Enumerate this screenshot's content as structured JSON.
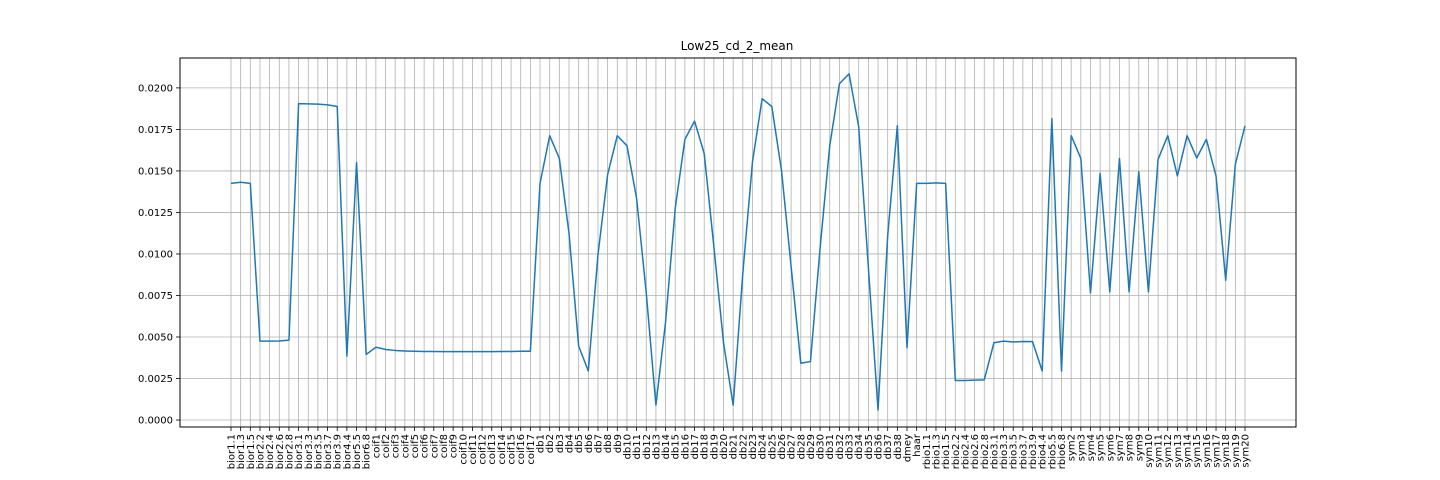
{
  "chart_data": {
    "type": "line",
    "title": "Low25_cd_2_mean",
    "xlabel": "",
    "ylabel": "",
    "ylim": [
      -0.00042,
      0.0218
    ],
    "yticks": [
      "0.0000",
      "0.0025",
      "0.0050",
      "0.0075",
      "0.0100",
      "0.0125",
      "0.0150",
      "0.0175",
      "0.0200"
    ],
    "grid": true,
    "line_color": "#1f77b4",
    "categories": [
      "bior1.1",
      "bior1.3",
      "bior1.5",
      "bior2.2",
      "bior2.4",
      "bior2.6",
      "bior2.8",
      "bior3.1",
      "bior3.3",
      "bior3.5",
      "bior3.7",
      "bior3.9",
      "bior4.4",
      "bior5.5",
      "bior6.8",
      "coif1",
      "coif2",
      "coif3",
      "coif4",
      "coif5",
      "coif6",
      "coif7",
      "coif8",
      "coif9",
      "coif10",
      "coif11",
      "coif12",
      "coif13",
      "coif14",
      "coif15",
      "coif16",
      "coif17",
      "db1",
      "db2",
      "db3",
      "db4",
      "db5",
      "db6",
      "db7",
      "db8",
      "db9",
      "db10",
      "db11",
      "db12",
      "db13",
      "db14",
      "db15",
      "db16",
      "db17",
      "db18",
      "db19",
      "db20",
      "db21",
      "db22",
      "db23",
      "db24",
      "db25",
      "db26",
      "db27",
      "db28",
      "db29",
      "db30",
      "db31",
      "db32",
      "db33",
      "db34",
      "db35",
      "db36",
      "db37",
      "db38",
      "dmey",
      "haar",
      "rbio1.1",
      "rbio1.3",
      "rbio1.5",
      "rbio2.2",
      "rbio2.4",
      "rbio2.6",
      "rbio2.8",
      "rbio3.1",
      "rbio3.3",
      "rbio3.5",
      "rbio3.7",
      "rbio3.9",
      "rbio4.4",
      "rbio5.5",
      "rbio6.8",
      "sym2",
      "sym3",
      "sym4",
      "sym5",
      "sym6",
      "sym7",
      "sym8",
      "sym9",
      "sym10",
      "sym11",
      "sym12",
      "sym13",
      "sym14",
      "sym15",
      "sym16",
      "sym17",
      "sym18",
      "sym19",
      "sym20"
    ],
    "tick_labels": [
      "bior1.1",
      "bior1.3",
      "bior1.5",
      "bior2.2",
      "bior2.4",
      "bior2.6",
      "bior2.8",
      "bior3.1",
      "bior3.3",
      "bior3.5",
      "bior3.7",
      "bior3.9",
      "bior4.4",
      "bior5.5",
      "bior6.8",
      "coif1",
      "coif2",
      "coif3",
      "coif4",
      "coif5",
      "coif6",
      "coif7",
      "coif8",
      "coif9",
      "coif10",
      "coif11",
      "coif12",
      "coif13",
      "coif14",
      "coif15",
      "coif16",
      "coif17",
      "db1",
      "db2",
      "db3",
      "db4",
      "db5",
      "db6",
      "db7",
      "db8",
      "db9",
      "db10",
      "db11",
      "db12",
      "db13",
      "db14",
      "db15",
      "db16",
      "db17",
      "db18",
      "db19",
      "db20",
      "db21",
      "db22",
      "db23",
      "db24",
      "db25",
      "db26",
      "db27",
      "db28",
      "db29",
      "db30",
      "db31",
      "db32",
      "db33",
      "db34",
      "db35",
      "db36",
      "db37",
      "db38",
      "dmey",
      "haar",
      "rbio1.1",
      "rbio1.3",
      "rbio1.5",
      "rbio2.2",
      "rbio2.4",
      "rbio2.6",
      "rbio2.8",
      "rbio3.1",
      "rbio3.3",
      "rbio3.5",
      "rbio3.7",
      "rbio3.9",
      "rbio4.4",
      "rbio5.5",
      "rbio6.8",
      "sym2",
      "sym3",
      "sym4",
      "sym5",
      "sym6",
      "sym7",
      "sym8",
      "sym9",
      "sym10",
      "sym11",
      "sym12",
      "sym13",
      "sym14",
      "sym15",
      "sym16",
      "sym17",
      "sym18",
      "sym19",
      "sym20"
    ],
    "values": [
      0.01425,
      0.01432,
      0.01425,
      0.00475,
      0.00475,
      0.00476,
      0.00481,
      0.01905,
      0.01904,
      0.01902,
      0.01898,
      0.01888,
      0.00385,
      0.0155,
      0.00395,
      0.00438,
      0.00425,
      0.00419,
      0.00416,
      0.00414,
      0.00413,
      0.00413,
      0.00412,
      0.00412,
      0.00412,
      0.00412,
      0.00412,
      0.00412,
      0.00413,
      0.00413,
      0.00414,
      0.00414,
      0.01425,
      0.01712,
      0.01575,
      0.01125,
      0.00445,
      0.00295,
      0.00995,
      0.01478,
      0.01712,
      0.01652,
      0.01335,
      0.00765,
      0.0009,
      0.0059,
      0.01275,
      0.0169,
      0.018,
      0.01605,
      0.01045,
      0.00465,
      0.0009,
      0.00885,
      0.01555,
      0.01935,
      0.01888,
      0.01505,
      0.00925,
      0.00342,
      0.00352,
      0.01035,
      0.01652,
      0.02025,
      0.02085,
      0.01765,
      0.0092,
      0.0006,
      0.0111,
      0.01772,
      0.00435,
      0.01425,
      0.01425,
      0.01428,
      0.01425,
      0.00238,
      0.00238,
      0.0024,
      0.00242,
      0.00465,
      0.00475,
      0.0047,
      0.00473,
      0.00472,
      0.00295,
      0.01815,
      0.00295,
      0.01712,
      0.01575,
      0.00765,
      0.01485,
      0.00772,
      0.01575,
      0.00772,
      0.01495,
      0.00772,
      0.0157,
      0.01712,
      0.0147,
      0.01712,
      0.01578,
      0.0169,
      0.0147,
      0.00842,
      0.0154,
      0.01772
    ]
  }
}
